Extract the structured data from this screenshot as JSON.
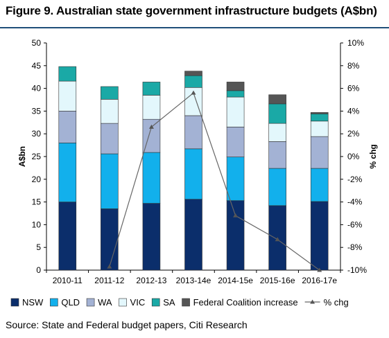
{
  "title": "Figure 9. Australian state government infrastructure budgets (A$bn)",
  "source": "Source: State and Federal budget papers, Citi Research",
  "chart_data": {
    "type": "bar",
    "stacked": true,
    "categories": [
      "2010-11",
      "2011-12",
      "2012-13",
      "2013-14e",
      "2014-15e",
      "2015-16e",
      "2016-17e"
    ],
    "series": [
      {
        "name": "NSW",
        "color": "#0b2e6b",
        "values": [
          15.0,
          13.5,
          14.7,
          15.6,
          15.3,
          14.2,
          15.1
        ]
      },
      {
        "name": "QLD",
        "color": "#12b0ec",
        "values": [
          13.0,
          12.1,
          11.2,
          11.1,
          9.6,
          8.2,
          7.3
        ]
      },
      {
        "name": "WA",
        "color": "#a3b2d4",
        "values": [
          7.0,
          6.7,
          7.3,
          7.3,
          6.6,
          5.9,
          7.0
        ]
      },
      {
        "name": "VIC",
        "color": "#e3f7fc",
        "values": [
          6.6,
          5.3,
          5.3,
          6.2,
          6.6,
          4.0,
          3.4
        ]
      },
      {
        "name": "SA",
        "color": "#1aa9a6",
        "values": [
          3.2,
          2.8,
          2.9,
          2.6,
          1.4,
          4.3,
          1.6
        ]
      },
      {
        "name": "Federal Coalition increase",
        "color": "#555555",
        "values": [
          0,
          0,
          0,
          1.0,
          1.9,
          2.0,
          0.3
        ]
      }
    ],
    "line_series": {
      "name": "% chg",
      "axis": "right",
      "values": [
        null,
        -9.7,
        2.6,
        5.6,
        -5.2,
        -7.3,
        -10.0
      ]
    },
    "ylabel": "A$bn",
    "ylim": [
      0,
      50
    ],
    "yticks": [
      0,
      5,
      10,
      15,
      20,
      25,
      30,
      35,
      40,
      45,
      50
    ],
    "y2label": "% chg",
    "y2lim": [
      -10,
      10
    ],
    "y2ticks": [
      "-10%",
      "-8%",
      "-6%",
      "-4%",
      "-2%",
      "0%",
      "2%",
      "4%",
      "6%",
      "8%",
      "10%"
    ],
    "legend_position": "bottom",
    "grid": false
  }
}
